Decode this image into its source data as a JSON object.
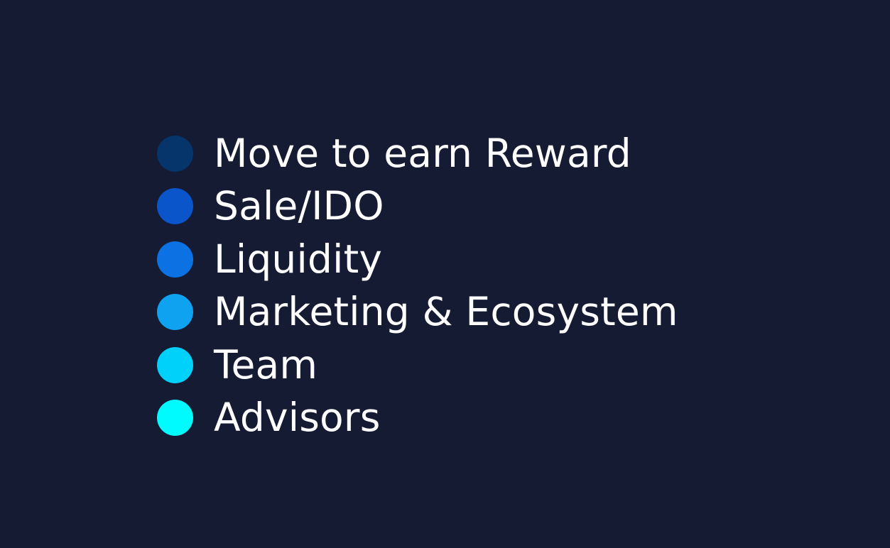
{
  "legend": {
    "items": [
      {
        "label": "Move to earn Reward",
        "color": "#06356c"
      },
      {
        "label": "Sale/IDO",
        "color": "#0a55c9"
      },
      {
        "label": "Liquidity",
        "color": "#0c72e3"
      },
      {
        "label": "Marketing & Ecosystem",
        "color": "#0ea2f0"
      },
      {
        "label": "Team",
        "color": "#00d1fb"
      },
      {
        "label": "Advisors",
        "color": "#00fbff"
      }
    ]
  },
  "chart_data": {
    "type": "pie",
    "categories": [
      "Move to earn Reward",
      "Sale/IDO",
      "Liquidity",
      "Marketing & Ecosystem",
      "Team",
      "Advisors"
    ],
    "colors": [
      "#06356c",
      "#0a55c9",
      "#0c72e3",
      "#0ea2f0",
      "#00d1fb",
      "#00fbff"
    ],
    "legend_placement": "center"
  },
  "colors": {
    "background": "#141b32",
    "text": "#ffffff"
  }
}
